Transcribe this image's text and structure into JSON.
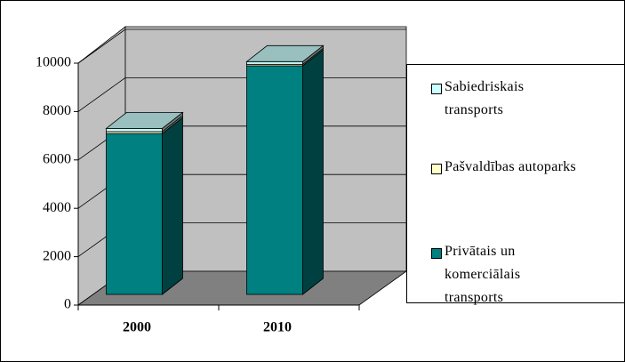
{
  "chart_data": {
    "type": "bar3d_stacked",
    "categories": [
      "2000",
      "2010"
    ],
    "series": [
      {
        "name": "Privātais un komerciālais transports",
        "color": "#008080",
        "values": [
          6650,
          9450
        ]
      },
      {
        "name": "Pašvaldības autoparks",
        "color": "#FFFFCC",
        "values": [
          80,
          60
        ]
      },
      {
        "name": "Sabiedriskais transports",
        "color": "#CCFFFF",
        "values": [
          130,
          110
        ]
      }
    ],
    "ylim": [
      0,
      10000
    ],
    "yticks": [
      0,
      2000,
      4000,
      6000,
      8000,
      10000
    ],
    "grid": true,
    "legend": "right"
  }
}
